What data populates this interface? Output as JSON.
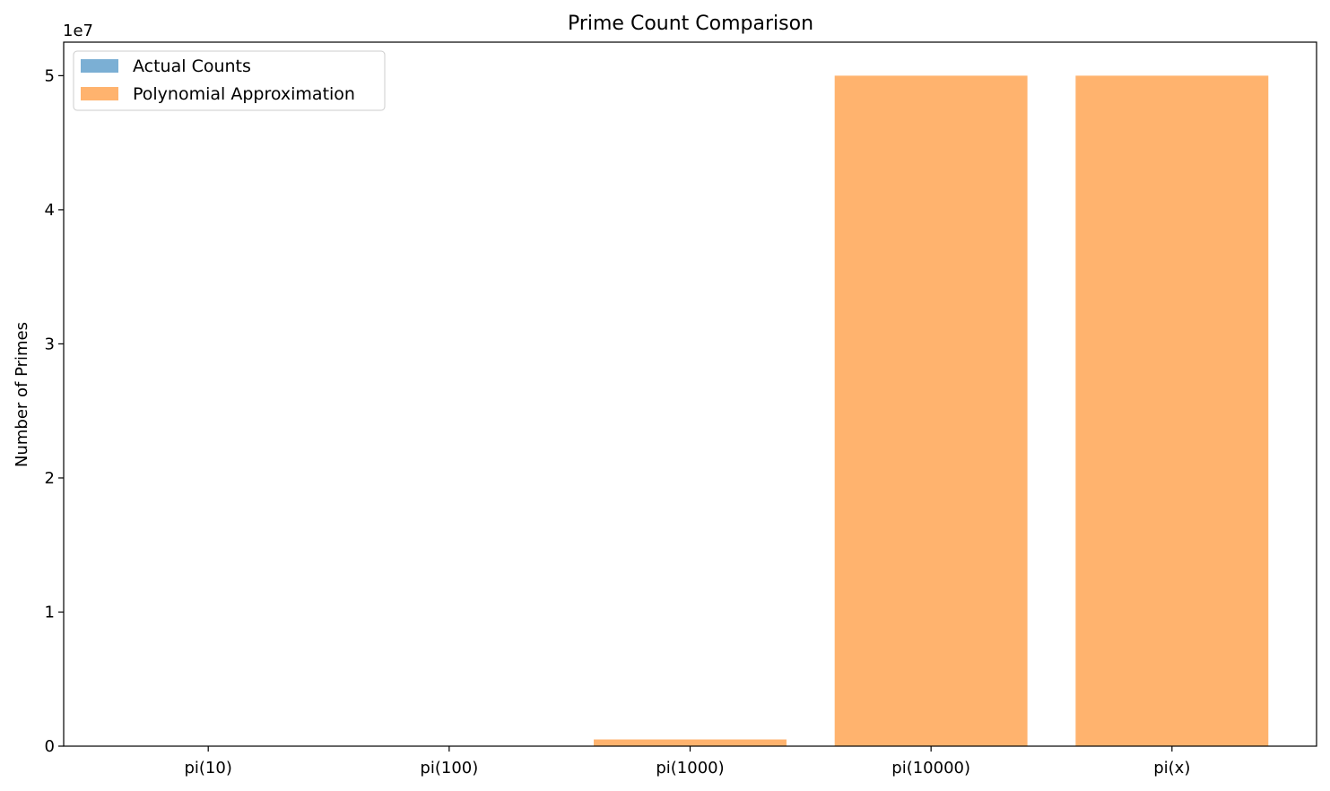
{
  "chart_data": {
    "type": "bar",
    "title": "Prime Count Comparison",
    "xlabel": "",
    "ylabel": "Number of Primes",
    "y_offset_label": "1e7",
    "categories": [
      "pi(10)",
      "pi(100)",
      "pi(1000)",
      "pi(10000)",
      "pi(x)"
    ],
    "series": [
      {
        "name": "Actual Counts",
        "values": [
          4,
          25,
          168,
          1229,
          1229
        ],
        "color": "#7bafd4"
      },
      {
        "name": "Polynomial Approximation",
        "values": [
          50,
          5000,
          500000,
          50000000,
          50000000
        ],
        "color": "#ffb36e"
      }
    ],
    "ylim": [
      0,
      52500000
    ],
    "yticks": [
      0,
      10000000,
      20000000,
      30000000,
      40000000,
      50000000
    ],
    "ytick_labels": [
      "0",
      "1",
      "2",
      "3",
      "4",
      "5"
    ],
    "grid": false,
    "legend_position": "upper-left"
  }
}
